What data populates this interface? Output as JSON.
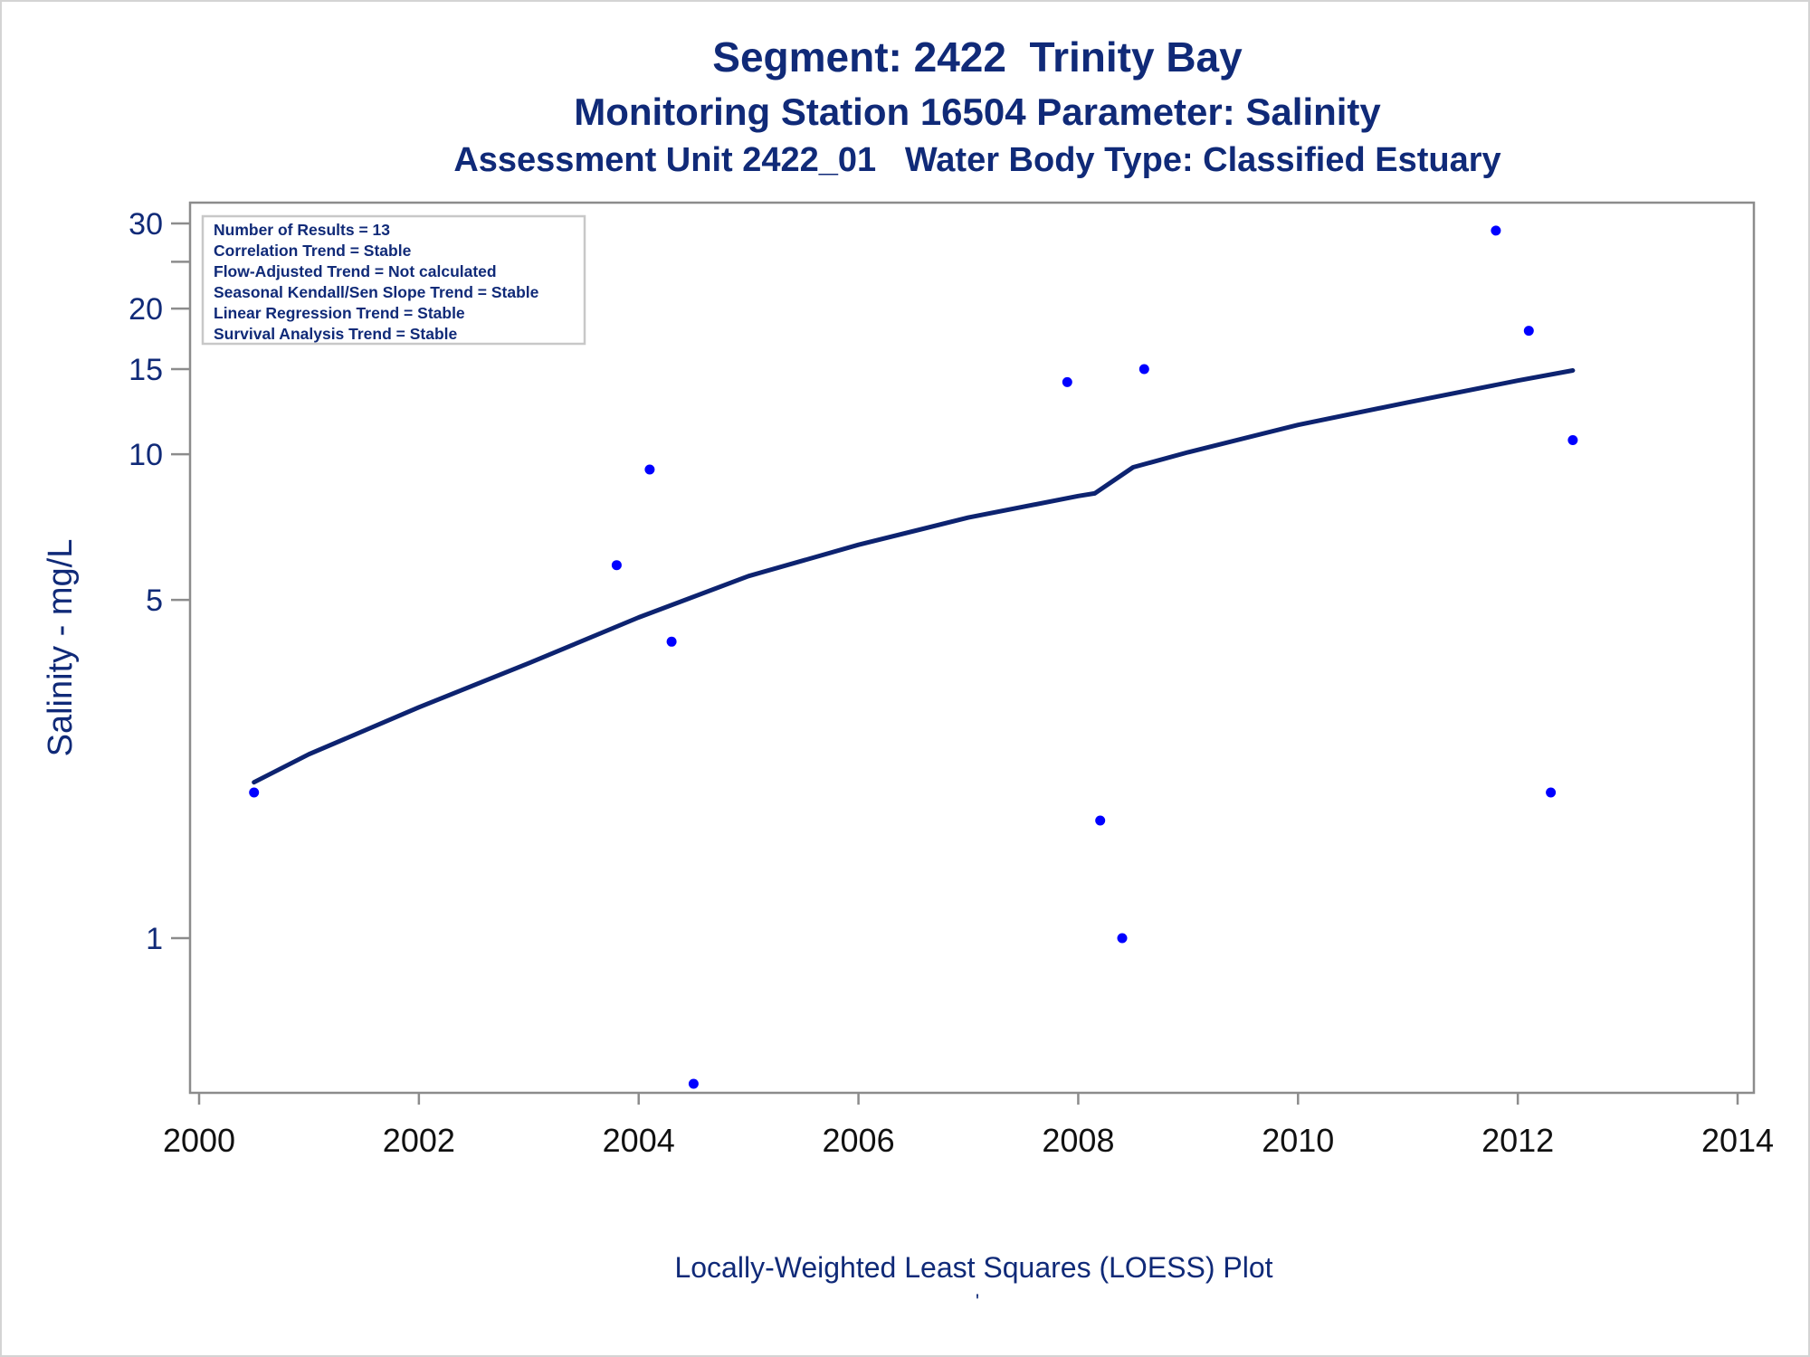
{
  "colors": {
    "text": "#102a78",
    "axis": "#8c8c8c",
    "points": "#0000ff",
    "loess": "#0d2370",
    "legend_border": "#c8c8c8",
    "frame": "#d4d4d4"
  },
  "titles": {
    "line1": "Segment: 2422  Trinity Bay",
    "line2": "Monitoring Station 16504 Parameter: Salinity",
    "line3": "Assessment Unit 2422_01   Water Body Type: Classified Estuary"
  },
  "stats_box": {
    "lines": [
      "Number of Results = 13",
      "Correlation Trend = Stable",
      "Flow-Adjusted Trend = Not calculated",
      "Seasonal Kendall/Sen Slope Trend = Stable",
      "Linear Regression Trend = Stable",
      "Survival Analysis Trend = Stable"
    ],
    "placement": "top-left"
  },
  "footnote_mark": "'",
  "chart_data": {
    "type": "scatter",
    "ylabel": "Salinity - mg/L",
    "xlabel": "Locally-Weighted Least Squares (LOESS) Plot",
    "yscale": "log",
    "xlim": [
      2000,
      2014
    ],
    "ylim": [
      0.5,
      32
    ],
    "x_ticks": [
      2000,
      2002,
      2004,
      2006,
      2008,
      2010,
      2012,
      2014
    ],
    "y_ticks": [
      1,
      5,
      10,
      15,
      20,
      30
    ],
    "y_minor_ticks": [
      25
    ],
    "grid": false,
    "series": [
      {
        "kind": "points",
        "x": [
          2000.5,
          2003.8,
          2004.1,
          2004.3,
          2004.5,
          2007.9,
          2008.2,
          2008.4,
          2008.6,
          2011.8,
          2012.1,
          2012.3,
          2012.5
        ],
        "y": [
          2.0,
          5.9,
          9.3,
          4.1,
          0.5,
          14.1,
          1.75,
          1.0,
          15.0,
          29.0,
          18.0,
          2.0,
          10.7
        ]
      },
      {
        "kind": "loess",
        "x": [
          2000.5,
          2001,
          2002,
          2003,
          2004,
          2005,
          2006,
          2007,
          2008,
          2008.15,
          2008.5,
          2009,
          2010,
          2011,
          2012,
          2012.5
        ],
        "y": [
          2.1,
          2.4,
          3.0,
          3.7,
          4.6,
          5.6,
          6.5,
          7.4,
          8.2,
          8.3,
          9.4,
          10.1,
          11.5,
          12.8,
          14.2,
          14.9
        ]
      }
    ]
  }
}
